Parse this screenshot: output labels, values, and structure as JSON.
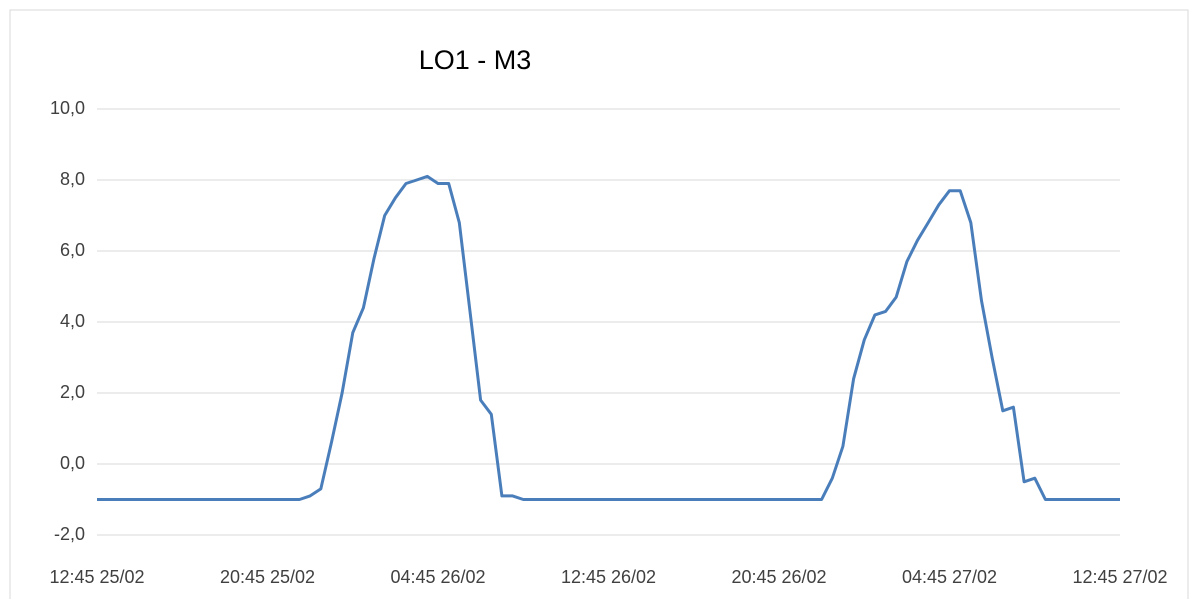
{
  "chart_data": {
    "type": "line",
    "title": "LO1 - M3",
    "categories": [
      "12:45 25/02",
      null,
      null,
      null,
      null,
      null,
      null,
      null,
      null,
      null,
      null,
      null,
      null,
      null,
      null,
      null,
      "20:45 25/02",
      null,
      null,
      null,
      null,
      null,
      null,
      null,
      null,
      null,
      null,
      null,
      null,
      null,
      null,
      null,
      "04:45 26/02",
      null,
      null,
      null,
      null,
      null,
      null,
      null,
      null,
      null,
      null,
      null,
      null,
      null,
      null,
      null,
      "12:45 26/02",
      null,
      null,
      null,
      null,
      null,
      null,
      null,
      null,
      null,
      null,
      null,
      null,
      null,
      null,
      null,
      "20:45 26/02",
      null,
      null,
      null,
      null,
      null,
      null,
      null,
      null,
      null,
      null,
      null,
      null,
      null,
      null,
      null,
      "04:45 27/02",
      null,
      null,
      null,
      null,
      null,
      null,
      null,
      null,
      null,
      null,
      null,
      null,
      null,
      null,
      null,
      "12:45 27/02"
    ],
    "values": [
      -1,
      -1,
      -1,
      -1,
      -1,
      -1,
      -1,
      -1,
      -1,
      -1,
      -1,
      -1,
      -1,
      -1,
      -1,
      -1,
      -1,
      -1,
      -1,
      -1,
      -0.9,
      -0.7,
      0.6,
      2.0,
      3.7,
      4.4,
      5.8,
      7.0,
      7.5,
      7.9,
      8.0,
      8.1,
      7.9,
      7.9,
      6.8,
      4.3,
      1.8,
      1.4,
      -0.9,
      -0.9,
      -1,
      -1,
      -1,
      -1,
      -1,
      -1,
      -1,
      -1,
      -1,
      -1,
      -1,
      -1,
      -1,
      -1,
      -1,
      -1,
      -1,
      -1,
      -1,
      -1,
      -1,
      -1,
      -1,
      -1,
      -1,
      -1,
      -1,
      -1,
      -1,
      -0.4,
      0.5,
      2.4,
      3.5,
      4.2,
      4.3,
      4.7,
      5.7,
      6.3,
      6.8,
      7.3,
      7.7,
      7.7,
      6.8,
      4.6,
      3.0,
      1.5,
      1.6,
      -0.5,
      -0.4,
      -1,
      -1,
      -1,
      -1,
      -1,
      -1,
      -1,
      -1
    ],
    "color": "#4a7ebb",
    "ylim": [
      -2,
      10
    ],
    "yticks": [
      {
        "value": -2,
        "label": "-2,0"
      },
      {
        "value": 0,
        "label": "0,0"
      },
      {
        "value": 2,
        "label": "2,0"
      },
      {
        "value": 4,
        "label": "4,0"
      },
      {
        "value": 6,
        "label": "6,0"
      },
      {
        "value": 8,
        "label": "8,0"
      },
      {
        "value": 10,
        "label": "10,0"
      }
    ],
    "grid": true
  }
}
